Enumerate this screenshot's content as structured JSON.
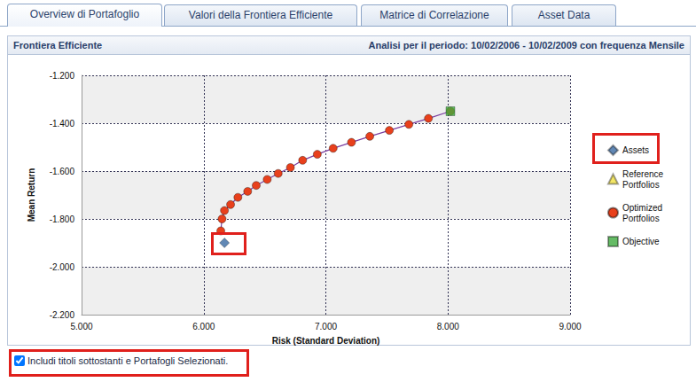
{
  "tabs": [
    "Overview di Portafoglio",
    "Valori della Frontiera Efficiente",
    "Matrice di Correlazione",
    "Asset Data"
  ],
  "header": {
    "title": "Frontiera Efficiente",
    "period": "Analisi per il periodo: 10/02/2006 - 10/02/2009 con frequenza Mensile"
  },
  "checkbox": {
    "label": "Includi titoli sottostanti e Portafogli Selezionati.",
    "checked": true
  },
  "chart_data": {
    "type": "scatter",
    "x_label": "Risk (Standard Deviation)",
    "y_label": "Mean Return",
    "xlim": [
      5,
      9
    ],
    "xticks": [
      {
        "value": 5,
        "label": "5.000"
      },
      {
        "value": 6,
        "label": "6.000"
      },
      {
        "value": 7,
        "label": "7.000"
      },
      {
        "value": 8,
        "label": "8.000"
      },
      {
        "value": 9,
        "label": "9.000"
      }
    ],
    "ylim": [
      -2.2,
      -1.2
    ],
    "yticks": [
      {
        "value": -2.2,
        "label": "-2.200"
      },
      {
        "value": -2.0,
        "label": "-2.000"
      },
      {
        "value": -1.8,
        "label": "-1.800"
      },
      {
        "value": -1.6,
        "label": "-1.600"
      },
      {
        "value": -1.4,
        "label": "-1.400"
      },
      {
        "value": -1.2,
        "label": "-1.200"
      }
    ],
    "grid": true,
    "legend": "right",
    "series": [
      {
        "name": "Assets",
        "type": "scatter",
        "marker": "diamond",
        "color": "#3a6aa3",
        "x": [
          6.17
        ],
        "values": [
          -1.9
        ]
      },
      {
        "name": "Reference Portfolios",
        "type": "scatter",
        "marker": "triangle",
        "color": "#f0e040",
        "x": [],
        "values": []
      },
      {
        "name": "Optimized Portfolios",
        "type": "line",
        "marker": "circle",
        "color": "#e8401c",
        "line_style": "solid",
        "x": [
          6.14,
          6.15,
          6.17,
          6.22,
          6.28,
          6.36,
          6.43,
          6.52,
          6.61,
          6.71,
          6.81,
          6.93,
          7.06,
          7.21,
          7.36,
          7.52,
          7.68,
          7.84,
          8.02
        ],
        "values": [
          -1.85,
          -1.8,
          -1.765,
          -1.74,
          -1.71,
          -1.685,
          -1.66,
          -1.635,
          -1.61,
          -1.585,
          -1.555,
          -1.53,
          -1.505,
          -1.48,
          -1.455,
          -1.43,
          -1.405,
          -1.38,
          -1.35
        ]
      },
      {
        "name": "Objective",
        "type": "scatter",
        "marker": "square",
        "color": "#3faa3f",
        "x": [
          8.02
        ],
        "values": [
          -1.35
        ]
      }
    ]
  }
}
